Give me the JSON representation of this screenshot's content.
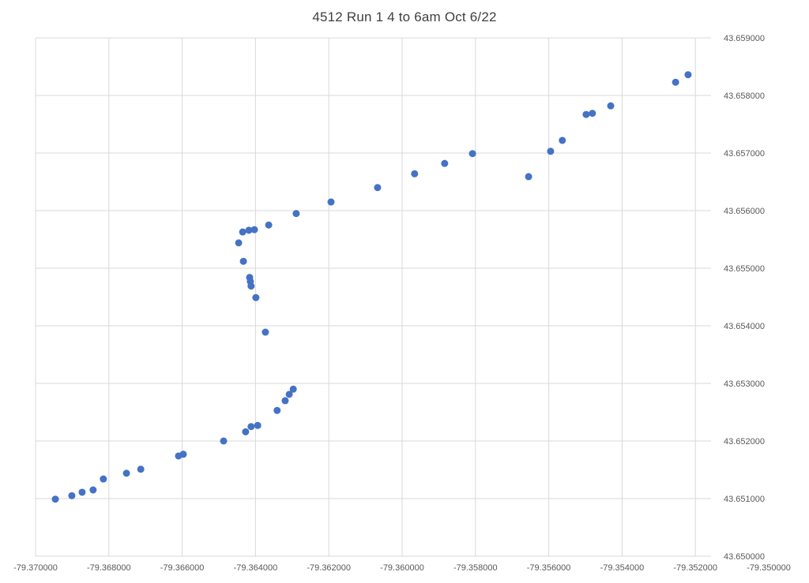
{
  "chart": {
    "title": "4512 Run 1 4 to 6am Oct 6/22"
  },
  "chart_data": {
    "type": "scatter",
    "title": "4512 Run 1 4 to 6am Oct 6/22",
    "xlabel": "",
    "ylabel": "",
    "xlim": [
      -79.37,
      -79.35
    ],
    "ylim": [
      43.65,
      43.659
    ],
    "x_tick_step": 0.002,
    "y_tick_step": 0.001,
    "x_ticks": [
      -79.37,
      -79.368,
      -79.366,
      -79.364,
      -79.362,
      -79.36,
      -79.358,
      -79.356,
      -79.354,
      -79.352,
      -79.35
    ],
    "y_ticks": [
      43.65,
      43.651,
      43.652,
      43.653,
      43.654,
      43.655,
      43.656,
      43.657,
      43.658,
      43.659
    ],
    "tick_decimals": 6,
    "grid": true,
    "legend": false,
    "y_axis_side": "right",
    "marker_color": "#4472C4",
    "grid_color": "#d9d9d9",
    "label_color": "#595959",
    "points": [
      [
        -79.36946,
        43.65099
      ],
      [
        -79.36901,
        43.65105
      ],
      [
        -79.36873,
        43.65111
      ],
      [
        -79.36843,
        43.65115
      ],
      [
        -79.36815,
        43.65134
      ],
      [
        -79.36752,
        43.65144
      ],
      [
        -79.36713,
        43.65151
      ],
      [
        -79.3661,
        43.65174
      ],
      [
        -79.36597,
        43.65177
      ],
      [
        -79.36487,
        43.652
      ],
      [
        -79.36427,
        43.65216
      ],
      [
        -79.36412,
        43.65225
      ],
      [
        -79.36394,
        43.65227
      ],
      [
        -79.36341,
        43.65253
      ],
      [
        -79.36319,
        43.6527
      ],
      [
        -79.36308,
        43.65281
      ],
      [
        -79.36297,
        43.6529
      ],
      [
        -79.36373,
        43.65389
      ],
      [
        -79.36399,
        43.65449
      ],
      [
        -79.36412,
        43.65469
      ],
      [
        -79.36414,
        43.65477
      ],
      [
        -79.36416,
        43.65484
      ],
      [
        -79.36433,
        43.65512
      ],
      [
        -79.36446,
        43.65544
      ],
      [
        -79.36435,
        43.65563
      ],
      [
        -79.36418,
        43.65566
      ],
      [
        -79.36403,
        43.65567
      ],
      [
        -79.36364,
        43.65575
      ],
      [
        -79.36289,
        43.65595
      ],
      [
        -79.36194,
        43.65615
      ],
      [
        -79.36067,
        43.6564
      ],
      [
        -79.35966,
        43.65664
      ],
      [
        -79.35884,
        43.65682
      ],
      [
        -79.35808,
        43.65699
      ],
      [
        -79.35655,
        43.65659
      ],
      [
        -79.35595,
        43.65703
      ],
      [
        -79.35563,
        43.65722
      ],
      [
        -79.35498,
        43.65767
      ],
      [
        -79.35481,
        43.65769
      ],
      [
        -79.35431,
        43.65782
      ],
      [
        -79.35254,
        43.65823
      ],
      [
        -79.3522,
        43.65836
      ]
    ]
  }
}
